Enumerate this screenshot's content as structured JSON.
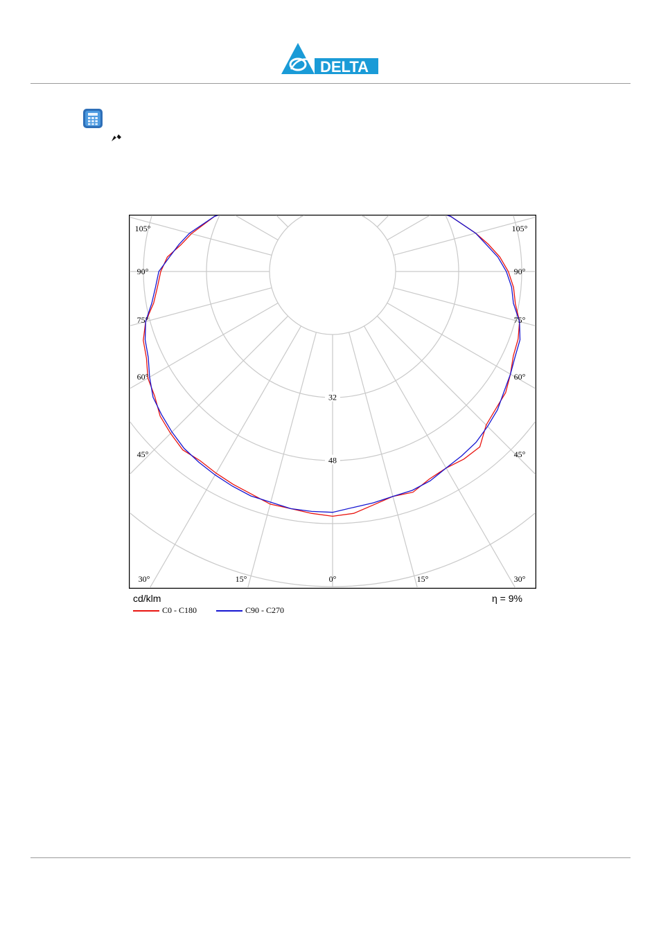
{
  "brand": {
    "name": "DELTA",
    "color": "#1a9bd7"
  },
  "icons": {
    "calculator": "calculator-icon",
    "pen": "pen-icon"
  },
  "chart_data": {
    "type": "polar",
    "title": "",
    "unit_label": "cd/klm",
    "efficiency_label": "η = 9%",
    "r_ticks": [
      32,
      48
    ],
    "r_scale_max": 80,
    "angle_ticks": [
      0,
      15,
      30,
      45,
      60,
      75,
      90,
      105
    ],
    "angle_labels": {
      "left": [
        "105°",
        "90°",
        "75°",
        "60°",
        "45°",
        "30°",
        "15°"
      ],
      "right": [
        "105°",
        "90°",
        "75°",
        "60°",
        "45°",
        "30°",
        "15°"
      ],
      "center": "0°"
    },
    "grid": true,
    "legend_position": "bottom-left",
    "series": [
      {
        "name": "C0 - C180",
        "color": "#e8140f",
        "points": [
          [
            -180,
            16
          ],
          [
            -172,
            16.1
          ],
          [
            -165,
            16.5
          ],
          [
            -155,
            18
          ],
          [
            -145,
            20.5
          ],
          [
            -135,
            24
          ],
          [
            -125,
            28.5
          ],
          [
            -115,
            33
          ],
          [
            -105,
            37
          ],
          [
            -100,
            39
          ],
          [
            -95,
            42
          ],
          [
            -90,
            43.5
          ],
          [
            -85,
            44.5
          ],
          [
            -80,
            46
          ],
          [
            -75,
            49
          ],
          [
            -70,
            51
          ],
          [
            -65,
            52
          ],
          [
            -60,
            54
          ],
          [
            -55,
            55
          ],
          [
            -50,
            57
          ],
          [
            -45,
            58
          ],
          [
            -40,
            59
          ],
          [
            -35,
            58.5
          ],
          [
            -30,
            59
          ],
          [
            -25,
            59.5
          ],
          [
            -20,
            60
          ],
          [
            -15,
            61
          ],
          [
            -10,
            61
          ],
          [
            -5,
            61.5
          ],
          [
            0,
            62
          ],
          [
            5,
            61.5
          ],
          [
            10,
            60
          ],
          [
            15,
            59
          ],
          [
            20,
            59.5
          ],
          [
            25,
            58
          ],
          [
            30,
            57.5
          ],
          [
            35,
            58
          ],
          [
            40,
            58
          ],
          [
            45,
            55
          ],
          [
            50,
            54
          ],
          [
            55,
            53.5
          ],
          [
            60,
            52
          ],
          [
            65,
            50.5
          ],
          [
            70,
            50
          ],
          [
            75,
            49
          ],
          [
            80,
            47
          ],
          [
            85,
            46
          ],
          [
            90,
            44.5
          ],
          [
            95,
            42.5
          ],
          [
            100,
            40
          ],
          [
            105,
            37.5
          ],
          [
            115,
            33
          ],
          [
            125,
            28.5
          ],
          [
            135,
            24
          ],
          [
            145,
            20.5
          ],
          [
            155,
            18
          ],
          [
            165,
            16.5
          ],
          [
            172,
            16.1
          ],
          [
            180,
            16
          ]
        ]
      },
      {
        "name": "C90 - C270",
        "color": "#1515d1",
        "points": [
          [
            -180,
            16
          ],
          [
            -172,
            16.1
          ],
          [
            -165,
            16.5
          ],
          [
            -155,
            18
          ],
          [
            -145,
            20.5
          ],
          [
            -135,
            24
          ],
          [
            -125,
            28.5
          ],
          [
            -115,
            33
          ],
          [
            -105,
            37.5
          ],
          [
            -100,
            39.5
          ],
          [
            -95,
            41.5
          ],
          [
            -90,
            44
          ],
          [
            -85,
            45
          ],
          [
            -80,
            46.5
          ],
          [
            -75,
            49
          ],
          [
            -70,
            50.5
          ],
          [
            -65,
            51.5
          ],
          [
            -60,
            53.5
          ],
          [
            -55,
            55.5
          ],
          [
            -50,
            56.5
          ],
          [
            -45,
            57.5
          ],
          [
            -40,
            58.5
          ],
          [
            -35,
            59
          ],
          [
            -30,
            59.5
          ],
          [
            -25,
            60
          ],
          [
            -20,
            60.5
          ],
          [
            -15,
            60.5
          ],
          [
            -10,
            61
          ],
          [
            -5,
            61
          ],
          [
            0,
            61
          ],
          [
            5,
            60
          ],
          [
            10,
            59.5
          ],
          [
            15,
            59
          ],
          [
            20,
            59
          ],
          [
            25,
            58.5
          ],
          [
            30,
            57.5
          ],
          [
            35,
            57
          ],
          [
            40,
            56.5
          ],
          [
            45,
            55.5
          ],
          [
            50,
            54.5
          ],
          [
            55,
            53
          ],
          [
            60,
            52
          ],
          [
            65,
            51
          ],
          [
            70,
            50.5
          ],
          [
            75,
            49
          ],
          [
            80,
            46.5
          ],
          [
            85,
            45.5
          ],
          [
            90,
            44
          ],
          [
            95,
            42
          ],
          [
            100,
            39.5
          ],
          [
            105,
            37.5
          ],
          [
            115,
            33
          ],
          [
            125,
            28.5
          ],
          [
            135,
            24
          ],
          [
            145,
            20.5
          ],
          [
            155,
            18
          ],
          [
            165,
            16.5
          ],
          [
            172,
            16.1
          ],
          [
            180,
            16
          ]
        ]
      }
    ]
  }
}
